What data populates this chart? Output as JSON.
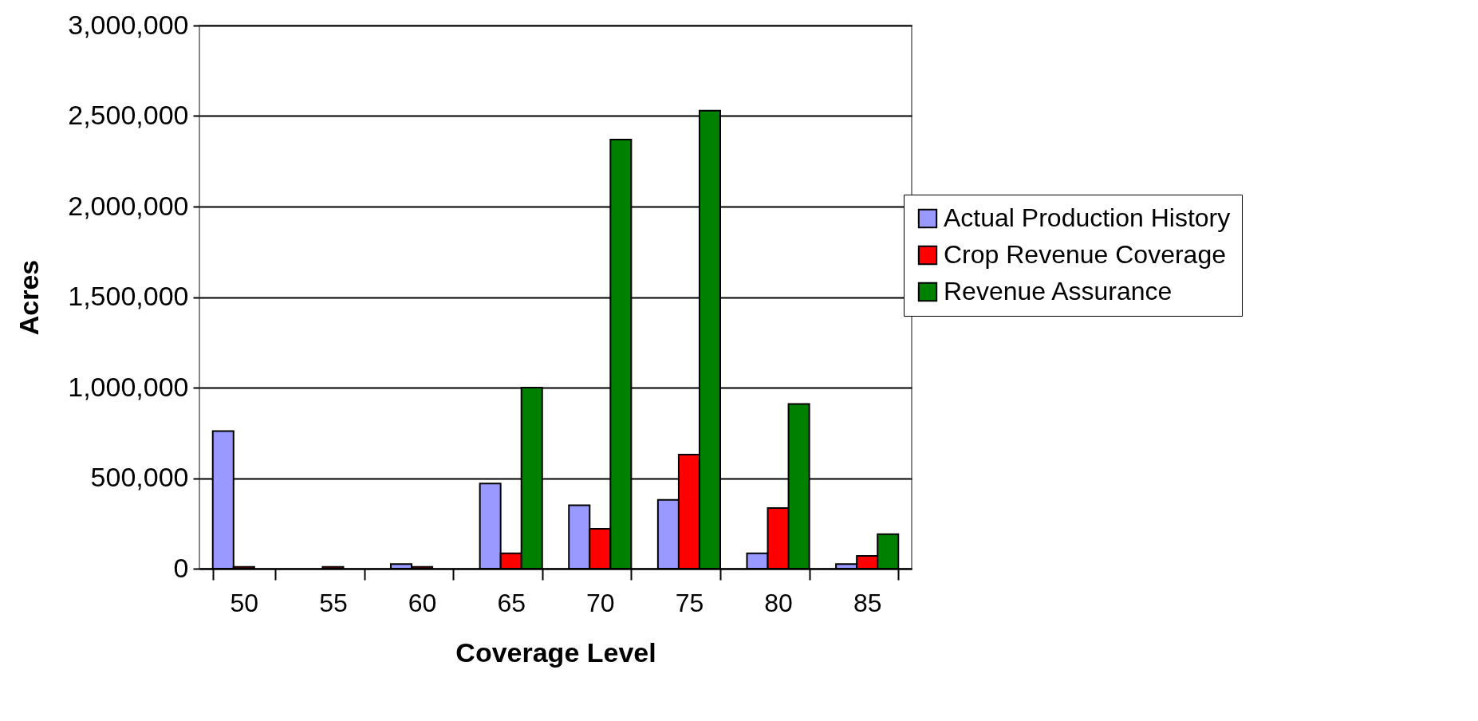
{
  "chart_data": {
    "type": "bar",
    "xlabel": "Coverage Level",
    "ylabel": "Acres",
    "categories": [
      "50",
      "55",
      "60",
      "65",
      "70",
      "75",
      "80",
      "85"
    ],
    "series": [
      {
        "name": "Actual Production History",
        "color": "#9999ff",
        "values": [
          760000,
          null,
          25000,
          470000,
          350000,
          380000,
          85000,
          25000
        ]
      },
      {
        "name": "Crop Revenue Coverage",
        "color": "#ff0000",
        "values": [
          10000,
          10000,
          10000,
          85000,
          220000,
          630000,
          335000,
          70000
        ]
      },
      {
        "name": "Revenue Assurance",
        "color": "#008000",
        "values": [
          null,
          null,
          null,
          1000000,
          2370000,
          2530000,
          910000,
          190000
        ]
      }
    ],
    "ylim": [
      0,
      3000000
    ],
    "yticks": [
      0,
      {
        "value": 500000,
        "label": "500,000"
      },
      {
        "value": 1000000,
        "label": "1,000,000"
      },
      {
        "value": 1500000,
        "label": "1,500,000"
      },
      {
        "value": 2000000,
        "label": "2,000,000"
      },
      {
        "value": 2500000,
        "label": "2,500,000"
      },
      {
        "value": 3000000,
        "label": "3,000,000"
      }
    ],
    "grid": "y",
    "legend": "right"
  }
}
